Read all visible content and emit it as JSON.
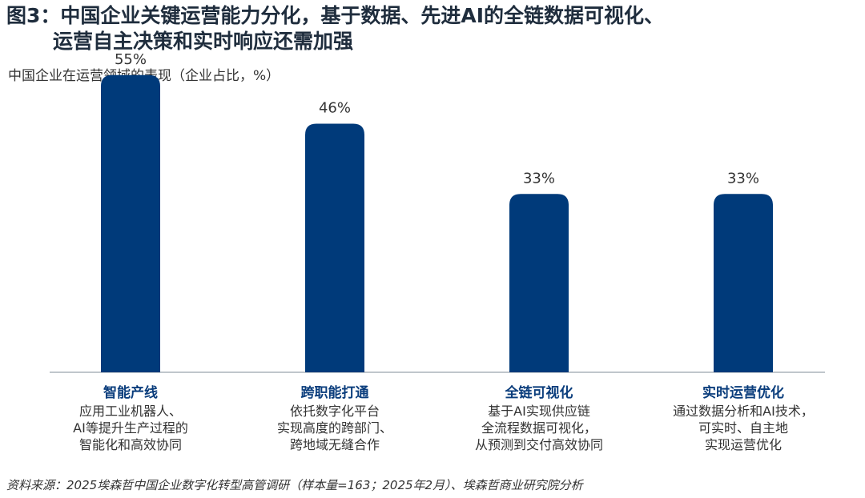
{
  "title_line1": "图3：中国企业关键运营能力分化，基于数据、先进AI的全链数据可视化、",
  "title_line2": "运营自主决策和实时响应还需加强",
  "subtitle": "中国企业在运营领域的表现（企业占比，%）",
  "source": "资料来源：2025埃森哲中国企业数字化转型高管调研（样本量=163；2025年2月）、埃森哲商业研究院分析",
  "colors": {
    "bar": "#003a7a",
    "category_title": "#0a3d7c"
  },
  "chart_data": {
    "type": "bar",
    "title": "中国企业在运营领域的表现（企业占比，%）",
    "categories": [
      "智能产线",
      "跨职能打通",
      "全链可视化",
      "实时运营优化"
    ],
    "values": [
      55,
      46,
      33,
      33
    ],
    "value_labels": [
      "55%",
      "46%",
      "33%",
      "33%"
    ],
    "descriptions": [
      [
        "应用工业机器人、",
        "AI等提升生产过程的",
        "智能化和高效协同"
      ],
      [
        "依托数字化平台",
        "实现高度的跨部门、",
        "跨地域无缝合作"
      ],
      [
        "基于AI实现供应链",
        "全流程数据可视化，",
        "从预测到交付高效协同"
      ],
      [
        "通过数据分析和AI技术，",
        "可实时、自主地",
        "实现运营优化"
      ]
    ],
    "ylim": [
      0,
      60
    ],
    "grid": false,
    "legend": "none"
  }
}
